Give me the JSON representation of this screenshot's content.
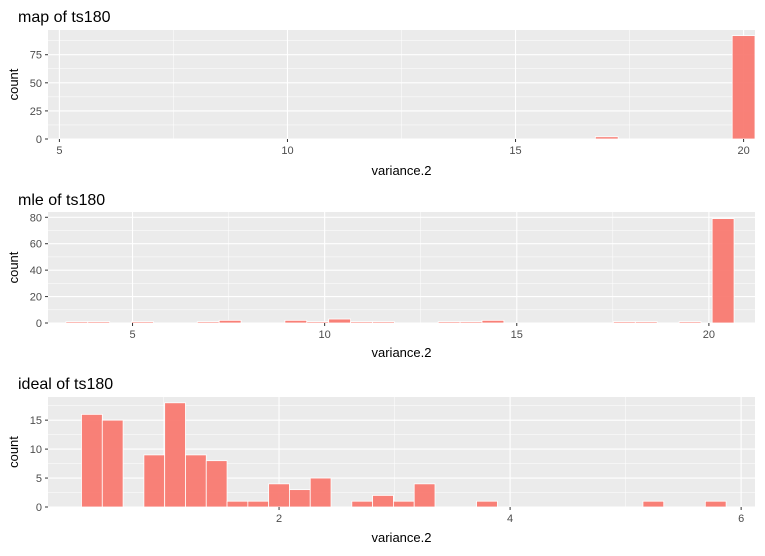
{
  "colors": {
    "bar_fill": "#F8766D",
    "bar_stroke": "#ffffff",
    "panel_bg": "#EBEBEB",
    "grid_major": "#ffffff",
    "text": "#000000",
    "tick_text": "#4D4D4D"
  },
  "chart_data": [
    {
      "type": "bar",
      "title": "map of ts180",
      "xlabel": "variance.2",
      "ylabel": "count",
      "xlim": [
        4.75,
        20.25
      ],
      "ylim": [
        0,
        97
      ],
      "xticks": [
        5,
        10,
        15,
        20
      ],
      "yticks": [
        0,
        25,
        50,
        75
      ],
      "grid": true,
      "bin_width": 0.5,
      "bins": [
        {
          "x": 5.25,
          "count": 0
        },
        {
          "x": 5.75,
          "count": 0
        },
        {
          "x": 6.25,
          "count": 0
        },
        {
          "x": 7.75,
          "count": 0
        },
        {
          "x": 8.25,
          "count": 0
        },
        {
          "x": 11.25,
          "count": 0
        },
        {
          "x": 17.0,
          "count": 2
        },
        {
          "x": 20.0,
          "count": 92
        }
      ]
    },
    {
      "type": "bar",
      "title": "mle of ts180",
      "xlabel": "variance.2",
      "ylabel": "count",
      "xlim": [
        2.8,
        21.2
      ],
      "ylim": [
        0,
        84
      ],
      "xticks": [
        5,
        10,
        15,
        20
      ],
      "yticks": [
        0,
        20,
        40,
        60,
        80
      ],
      "grid": true,
      "bin_width": 0.57,
      "bins": [
        {
          "x": 3.55,
          "count": 1
        },
        {
          "x": 4.12,
          "count": 1
        },
        {
          "x": 5.26,
          "count": 1
        },
        {
          "x": 6.97,
          "count": 1
        },
        {
          "x": 7.54,
          "count": 2
        },
        {
          "x": 9.25,
          "count": 2
        },
        {
          "x": 9.82,
          "count": 1
        },
        {
          "x": 10.39,
          "count": 3
        },
        {
          "x": 10.96,
          "count": 1
        },
        {
          "x": 11.53,
          "count": 1
        },
        {
          "x": 13.24,
          "count": 1
        },
        {
          "x": 13.81,
          "count": 1
        },
        {
          "x": 14.38,
          "count": 2
        },
        {
          "x": 17.8,
          "count": 1
        },
        {
          "x": 18.37,
          "count": 1
        },
        {
          "x": 19.51,
          "count": 1
        },
        {
          "x": 20.37,
          "count": 79
        }
      ]
    },
    {
      "type": "bar",
      "title": "ideal of ts180",
      "xlabel": "variance.2",
      "ylabel": "count",
      "xlim": [
        0.0,
        6.12
      ],
      "ylim": [
        0,
        19
      ],
      "xticks": [
        2,
        4,
        6
      ],
      "yticks": [
        0,
        5,
        10,
        15
      ],
      "grid": true,
      "bin_width": 0.18,
      "bins": [
        {
          "x": 0.38,
          "count": 16
        },
        {
          "x": 0.56,
          "count": 15
        },
        {
          "x": 0.92,
          "count": 9
        },
        {
          "x": 1.1,
          "count": 18
        },
        {
          "x": 1.28,
          "count": 9
        },
        {
          "x": 1.46,
          "count": 8
        },
        {
          "x": 1.64,
          "count": 1
        },
        {
          "x": 1.82,
          "count": 1
        },
        {
          "x": 2.0,
          "count": 4
        },
        {
          "x": 2.18,
          "count": 3
        },
        {
          "x": 2.36,
          "count": 5
        },
        {
          "x": 2.72,
          "count": 1
        },
        {
          "x": 2.9,
          "count": 2
        },
        {
          "x": 3.08,
          "count": 1
        },
        {
          "x": 3.26,
          "count": 4
        },
        {
          "x": 3.8,
          "count": 1
        },
        {
          "x": 5.24,
          "count": 1
        },
        {
          "x": 5.78,
          "count": 1
        }
      ]
    }
  ]
}
